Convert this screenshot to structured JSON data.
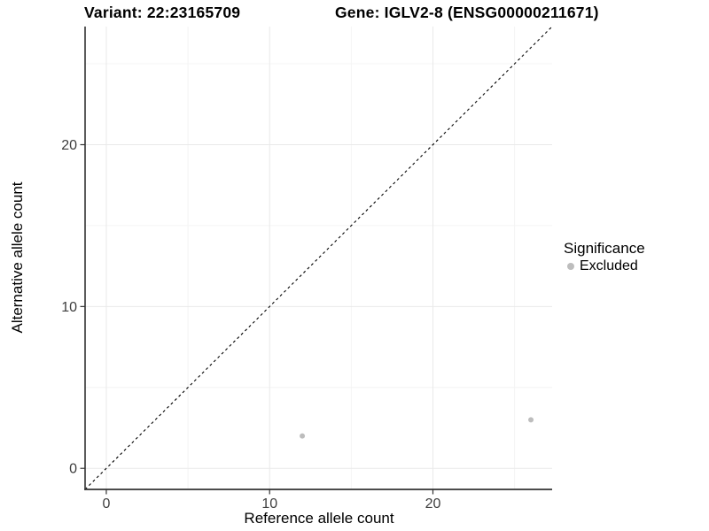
{
  "chart_data": {
    "type": "scatter",
    "titles": {
      "left": "Variant: 22:23165709",
      "right": "Gene: IGLV2-8 (ENSG00000211671)"
    },
    "xlabel": "Reference allele count",
    "ylabel": "Alternative allele count",
    "xlim": [
      -1.3,
      27.3
    ],
    "ylim": [
      -1.3,
      27.3
    ],
    "x_ticks": [
      0,
      10,
      20
    ],
    "y_ticks": [
      0,
      10,
      20
    ],
    "x_minor_gridlines": [
      5,
      15,
      25
    ],
    "y_minor_gridlines": [
      5,
      15,
      25
    ],
    "grid": "on",
    "identity_line": {
      "slope": 1,
      "intercept": 0,
      "style": "dashed",
      "color": "#000000"
    },
    "series": [
      {
        "name": "Excluded",
        "color": "#bdbdbd",
        "marker": "circle",
        "points": [
          {
            "x": 12,
            "y": 2
          },
          {
            "x": 26,
            "y": 3
          }
        ]
      }
    ],
    "legend": {
      "title": "Significance",
      "position": "right",
      "items": [
        {
          "label": "Excluded",
          "color": "#bdbdbd",
          "marker": "circle"
        }
      ]
    },
    "colors": {
      "axis_line": "#333333",
      "tick_text": "#3d3d3d",
      "grid_major": "#e9e9e9",
      "grid_minor": "#f4f4f4",
      "background": "#ffffff",
      "point": "#bdbdbd"
    }
  }
}
